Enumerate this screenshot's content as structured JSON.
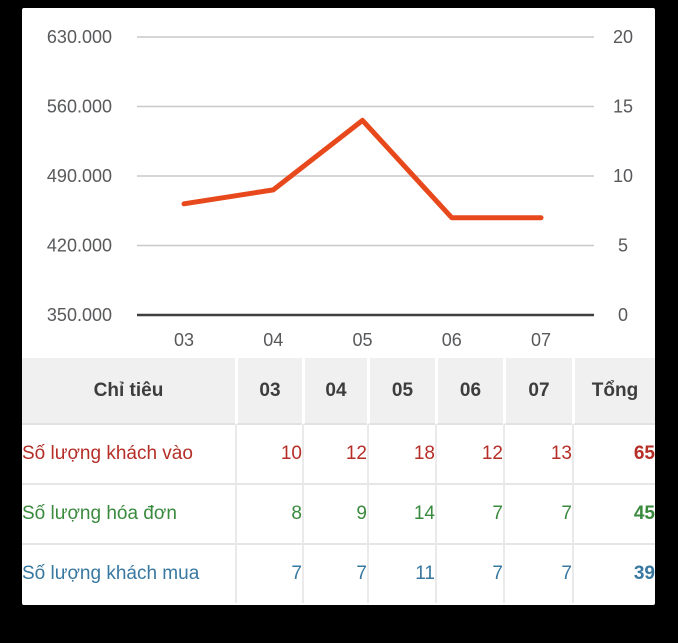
{
  "chart_data": {
    "type": "line",
    "title": "",
    "x": [
      "03",
      "04",
      "05",
      "06",
      "07"
    ],
    "series": [
      {
        "name": "Số lượng hóa đơn",
        "values": [
          8,
          9,
          14,
          7,
          7
        ],
        "color": "#e8491c",
        "axis": "right"
      }
    ],
    "left_axis": {
      "labels": [
        "630.000",
        "560.000",
        "490.000",
        "420.000",
        "350.000"
      ],
      "values": [
        630000,
        560000,
        490000,
        420000,
        350000
      ],
      "range": [
        350000,
        630000
      ]
    },
    "right_axis": {
      "labels": [
        "20",
        "15",
        "10",
        "5",
        "0"
      ],
      "values": [
        20,
        15,
        10,
        5,
        0
      ],
      "range": [
        0,
        20
      ]
    },
    "grid": true,
    "legend": false,
    "colors": {
      "gridline": "#c9c9c9",
      "baseline": "#3f3f3f",
      "axis_text": "#58595b",
      "line": "#e8491c"
    }
  },
  "table": {
    "columns": [
      "Chỉ tiêu",
      "03",
      "04",
      "05",
      "06",
      "07",
      "Tổng"
    ],
    "rows": [
      {
        "label": "Số lượng khách vào",
        "values": [
          "10",
          "12",
          "18",
          "12",
          "13"
        ],
        "total": "65",
        "color": "#b52e27"
      },
      {
        "label": "Số lượng hóa đơn",
        "values": [
          "8",
          "9",
          "14",
          "7",
          "7"
        ],
        "total": "45",
        "color": "#3a8a3e"
      },
      {
        "label": "Số lượng khách mua",
        "values": [
          "7",
          "7",
          "11",
          "7",
          "7"
        ],
        "total": "39",
        "color": "#3878a0"
      }
    ]
  }
}
